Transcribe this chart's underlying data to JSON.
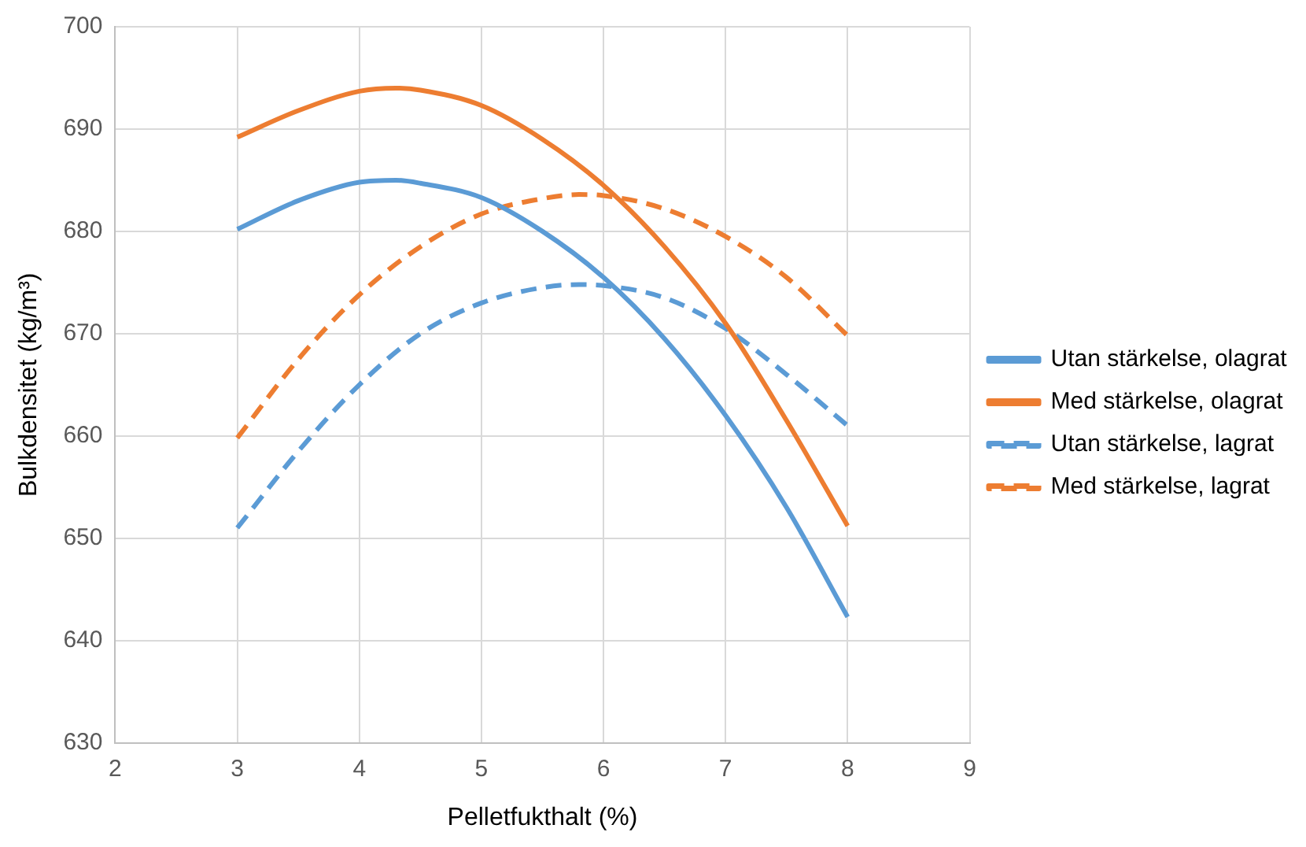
{
  "chart_data": {
    "type": "line",
    "xlabel": "Pelletfukthalt (%)",
    "ylabel": "Bulkdensitet (kg/m³)",
    "xlim": [
      2,
      9
    ],
    "xticks": [
      2,
      3,
      4,
      5,
      6,
      7,
      8,
      9
    ],
    "ylim": [
      630,
      700
    ],
    "yticks": [
      630,
      640,
      650,
      660,
      670,
      680,
      690,
      700
    ],
    "grid": true,
    "legend": "right",
    "marker": "none",
    "series": [
      {
        "name": "Utan stärkelse, olagrat",
        "color": "#5b9bd5",
        "line_style": "solid",
        "x": [
          3,
          3.5,
          4,
          4.3,
          4.5,
          5,
          5.5,
          6,
          6.5,
          7,
          7.5,
          8
        ],
        "values": [
          680.2,
          683,
          684.8,
          685,
          684.7,
          683.3,
          680,
          675.5,
          669.5,
          662,
          653,
          642.3
        ]
      },
      {
        "name": "Med stärkelse, olagrat",
        "color": "#ed7d31",
        "line_style": "solid",
        "x": [
          3,
          3.5,
          4,
          4.3,
          4.5,
          5,
          5.5,
          6,
          6.5,
          7,
          7.5,
          8
        ],
        "values": [
          689.2,
          691.8,
          693.7,
          694,
          693.8,
          692.3,
          689,
          684.5,
          678.5,
          671,
          661.5,
          651.2
        ]
      },
      {
        "name": "Utan stärkelse, lagrat",
        "color": "#5b9bd5",
        "line_style": "dashed",
        "x": [
          3,
          3.5,
          4,
          4.5,
          5,
          5.5,
          5.8,
          6,
          6.5,
          7,
          7.5,
          8
        ],
        "values": [
          651,
          658.5,
          665,
          670,
          673,
          674.5,
          674.8,
          674.7,
          673.5,
          670.5,
          666,
          661
        ]
      },
      {
        "name": "Med stärkelse, lagrat",
        "color": "#ed7d31",
        "line_style": "dashed",
        "x": [
          3,
          3.5,
          4,
          4.5,
          5,
          5.5,
          5.8,
          6,
          6.5,
          7,
          7.5,
          8
        ],
        "values": [
          659.8,
          667.5,
          673.8,
          678.5,
          681.7,
          683.2,
          683.6,
          683.5,
          682.2,
          679.5,
          675.5,
          669.8
        ]
      }
    ]
  }
}
